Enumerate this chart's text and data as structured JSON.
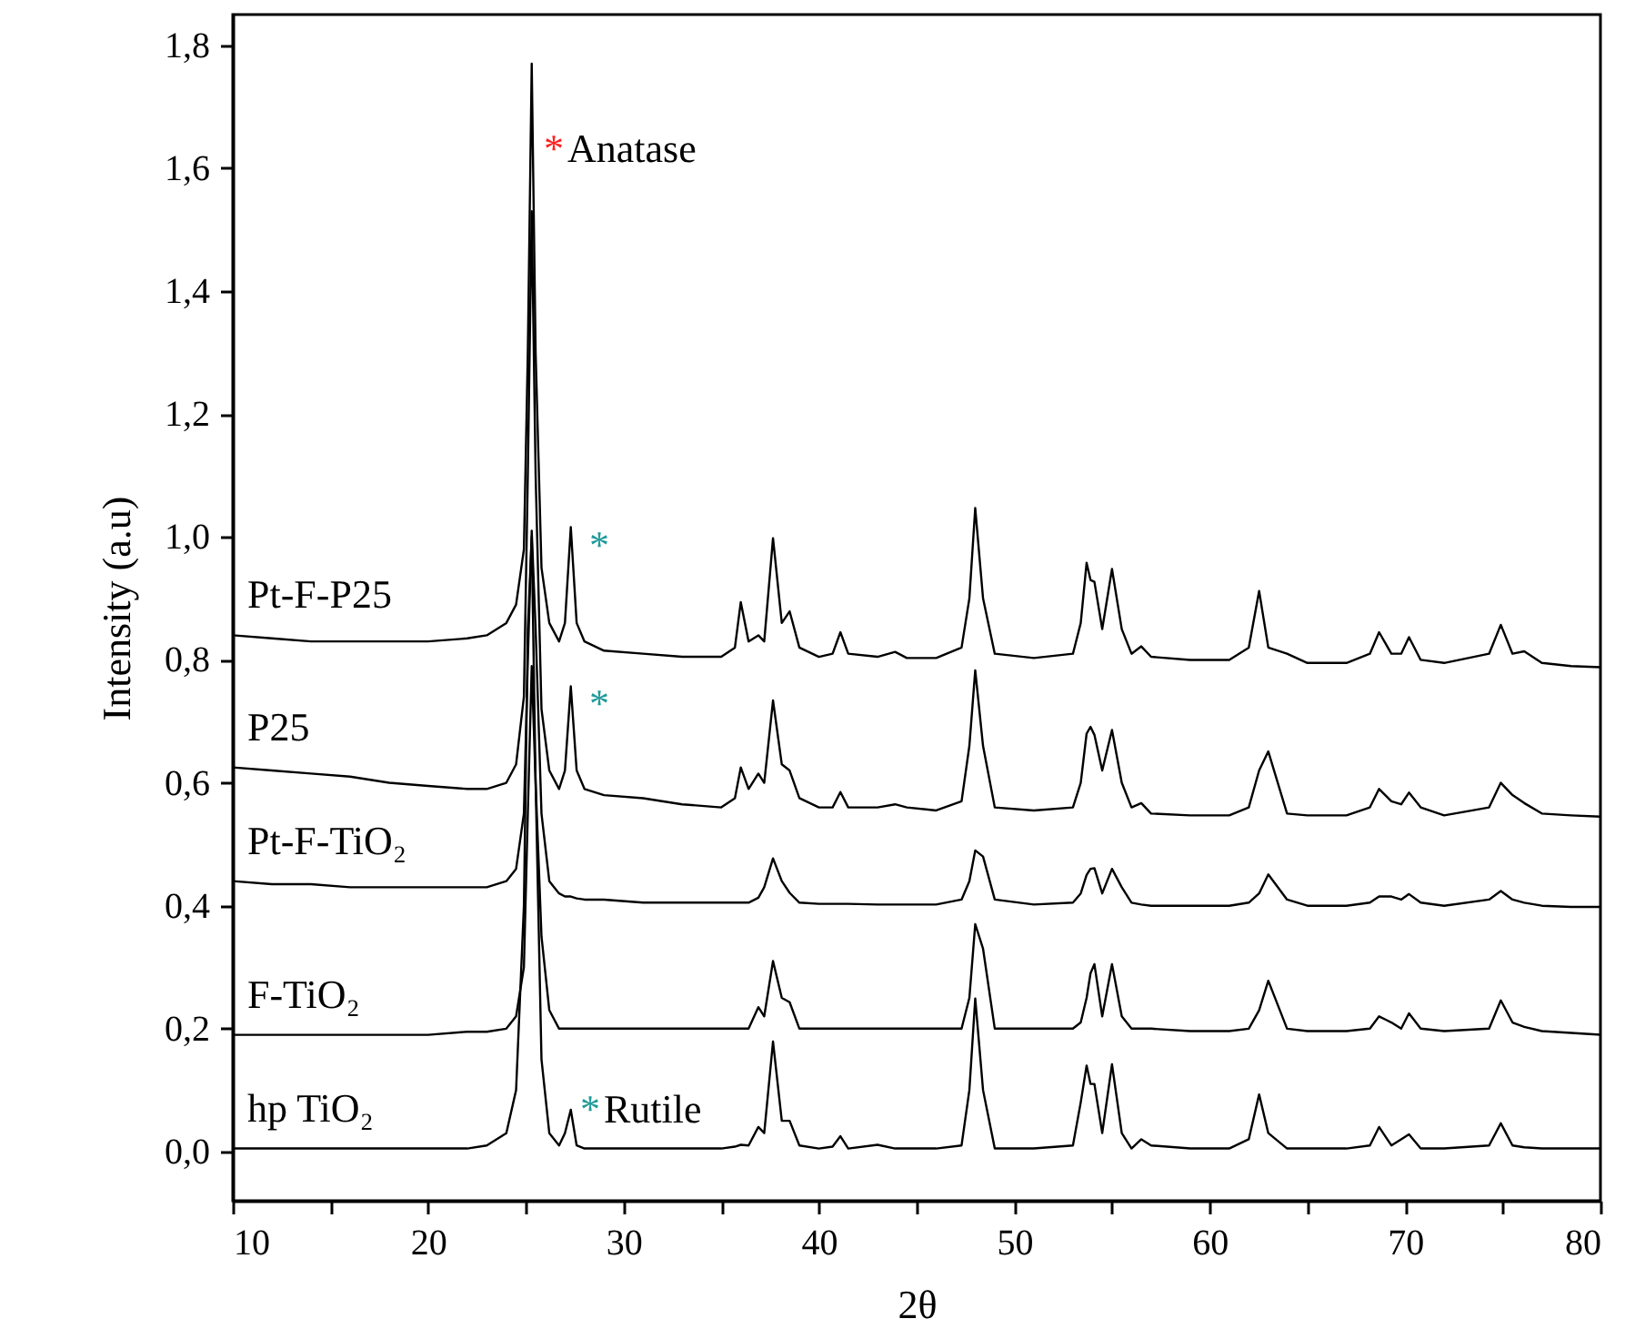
{
  "chart_data": {
    "type": "line",
    "xlabel": "2θ",
    "ylabel": "Intensity (a.u)",
    "xlim": [
      10,
      80
    ],
    "ylim": [
      -0.08,
      1.85
    ],
    "xticks": [
      10,
      {
        "value": 15,
        "label": null
      },
      20,
      {
        "value": 25,
        "label": null
      },
      30,
      {
        "value": 35,
        "label": null
      },
      40,
      {
        "value": 45,
        "label": null
      },
      50,
      {
        "value": 55,
        "label": null
      },
      60,
      {
        "value": 65,
        "label": null
      },
      70,
      {
        "value": 75,
        "label": null
      },
      80
    ],
    "yticks": [
      {
        "value": 0,
        "label": "0,0"
      },
      {
        "value": 0.2,
        "label": "0,2"
      },
      {
        "value": 0.4,
        "label": "0,4"
      },
      {
        "value": 0.6,
        "label": "0,6"
      },
      {
        "value": 0.8,
        "label": "0,8"
      },
      {
        "value": 1.0,
        "label": "1,0"
      },
      {
        "value": 1.2,
        "label": "1,2"
      },
      {
        "value": 1.4,
        "label": "1,4"
      },
      {
        "value": 1.6,
        "label": "1,6"
      },
      {
        "value": 1.8,
        "label": "1,8"
      }
    ],
    "grid": false,
    "marker": "none",
    "line_style": "solid",
    "x": [
      10,
      12,
      14,
      16,
      18,
      20,
      22,
      23,
      24,
      24.5,
      24.9,
      25.1,
      25.3,
      25.5,
      25.8,
      26.2,
      26.7,
      27.0,
      27.3,
      27.6,
      28,
      29,
      31,
      33,
      35,
      35.7,
      36.0,
      36.4,
      36.9,
      37.2,
      37.65,
      38.1,
      38.5,
      39,
      40,
      40.7,
      41.1,
      41.5,
      43,
      43.9,
      44.5,
      46,
      47.3,
      47.7,
      48.0,
      48.4,
      49,
      51,
      53,
      53.4,
      53.7,
      53.9,
      54.1,
      54.5,
      55.0,
      55.5,
      56,
      56.5,
      57,
      59,
      61,
      62,
      62.53,
      63,
      63.96,
      65,
      67,
      68.2,
      68.67,
      69.3,
      69.8,
      70.2,
      70.8,
      72,
      74.3,
      74.9,
      75.5,
      76.1,
      77,
      78.5,
      80
    ],
    "series": [
      {
        "name": "Pt-F-P25",
        "color": "#000000",
        "values": [
          0.84,
          0.835,
          0.83,
          0.83,
          0.83,
          0.83,
          0.835,
          0.84,
          0.86,
          0.89,
          0.98,
          1.3,
          1.77,
          1.3,
          0.95,
          0.86,
          0.83,
          0.86,
          1.016,
          0.86,
          0.83,
          0.815,
          0.81,
          0.805,
          0.805,
          0.82,
          0.894,
          0.83,
          0.84,
          0.83,
          0.998,
          0.86,
          0.879,
          0.82,
          0.805,
          0.81,
          0.845,
          0.81,
          0.805,
          0.813,
          0.803,
          0.803,
          0.82,
          0.9,
          1.047,
          0.9,
          0.81,
          0.803,
          0.81,
          0.86,
          0.958,
          0.93,
          0.927,
          0.85,
          0.948,
          0.85,
          0.81,
          0.822,
          0.805,
          0.8,
          0.8,
          0.82,
          0.912,
          0.82,
          0.81,
          0.795,
          0.795,
          0.81,
          0.845,
          0.81,
          0.81,
          0.837,
          0.8,
          0.795,
          0.81,
          0.857,
          0.81,
          0.814,
          0.795,
          0.79,
          0.788
        ]
      },
      {
        "name": "P25",
        "color": "#000000",
        "values": [
          0.625,
          0.62,
          0.615,
          0.61,
          0.6,
          0.595,
          0.59,
          0.59,
          0.6,
          0.63,
          0.74,
          1.1,
          1.53,
          1.1,
          0.72,
          0.62,
          0.59,
          0.62,
          0.757,
          0.62,
          0.59,
          0.58,
          0.575,
          0.565,
          0.56,
          0.575,
          0.625,
          0.59,
          0.615,
          0.6,
          0.734,
          0.63,
          0.62,
          0.575,
          0.56,
          0.56,
          0.585,
          0.56,
          0.56,
          0.565,
          0.56,
          0.555,
          0.57,
          0.66,
          0.783,
          0.66,
          0.56,
          0.555,
          0.56,
          0.6,
          0.68,
          0.691,
          0.678,
          0.62,
          0.686,
          0.6,
          0.56,
          0.567,
          0.55,
          0.547,
          0.547,
          0.56,
          0.62,
          0.651,
          0.55,
          0.547,
          0.547,
          0.56,
          0.59,
          0.57,
          0.565,
          0.584,
          0.56,
          0.547,
          0.56,
          0.6,
          0.58,
          0.567,
          0.55,
          0.547,
          0.545
        ]
      },
      {
        "name": "Pt-F-TiO₂",
        "color": "#000000",
        "values": [
          0.44,
          0.435,
          0.435,
          0.43,
          0.43,
          0.43,
          0.43,
          0.43,
          0.44,
          0.46,
          0.55,
          0.8,
          1.01,
          0.85,
          0.55,
          0.44,
          0.42,
          0.415,
          0.415,
          0.412,
          0.41,
          0.41,
          0.405,
          0.405,
          0.405,
          0.405,
          0.405,
          0.405,
          0.413,
          0.43,
          0.477,
          0.44,
          0.421,
          0.405,
          0.403,
          0.403,
          0.403,
          0.403,
          0.402,
          0.402,
          0.402,
          0.402,
          0.41,
          0.44,
          0.49,
          0.48,
          0.41,
          0.402,
          0.405,
          0.42,
          0.45,
          0.46,
          0.461,
          0.42,
          0.46,
          0.43,
          0.405,
          0.402,
          0.4,
          0.4,
          0.4,
          0.405,
          0.42,
          0.451,
          0.41,
          0.4,
          0.4,
          0.405,
          0.415,
          0.415,
          0.41,
          0.419,
          0.405,
          0.4,
          0.41,
          0.424,
          0.41,
          0.405,
          0.4,
          0.398,
          0.398
        ]
      },
      {
        "name": "F-TiO₂",
        "color": "#000000",
        "values": [
          0.19,
          0.19,
          0.19,
          0.19,
          0.19,
          0.19,
          0.195,
          0.195,
          0.2,
          0.22,
          0.3,
          0.55,
          0.79,
          0.6,
          0.35,
          0.23,
          0.2,
          0.2,
          0.2,
          0.2,
          0.2,
          0.2,
          0.2,
          0.2,
          0.2,
          0.2,
          0.2,
          0.2,
          0.235,
          0.22,
          0.31,
          0.25,
          0.243,
          0.2,
          0.2,
          0.2,
          0.2,
          0.2,
          0.2,
          0.2,
          0.2,
          0.2,
          0.2,
          0.25,
          0.37,
          0.33,
          0.2,
          0.2,
          0.2,
          0.21,
          0.25,
          0.29,
          0.305,
          0.22,
          0.305,
          0.22,
          0.2,
          0.2,
          0.2,
          0.196,
          0.196,
          0.2,
          0.23,
          0.278,
          0.2,
          0.196,
          0.196,
          0.2,
          0.22,
          0.21,
          0.2,
          0.225,
          0.2,
          0.196,
          0.2,
          0.246,
          0.21,
          0.203,
          0.196,
          0.193,
          0.19
        ]
      },
      {
        "name": "hp TiO₂",
        "color": "#000000",
        "values": [
          0.005,
          0.005,
          0.005,
          0.005,
          0.005,
          0.005,
          0.005,
          0.01,
          0.03,
          0.1,
          0.4,
          0.85,
          1.0,
          0.6,
          0.15,
          0.03,
          0.01,
          0.03,
          0.068,
          0.01,
          0.005,
          0.005,
          0.005,
          0.005,
          0.005,
          0.008,
          0.011,
          0.01,
          0.04,
          0.03,
          0.179,
          0.05,
          0.05,
          0.01,
          0.005,
          0.008,
          0.025,
          0.005,
          0.011,
          0.005,
          0.005,
          0.005,
          0.01,
          0.1,
          0.249,
          0.1,
          0.005,
          0.005,
          0.01,
          0.08,
          0.14,
          0.11,
          0.11,
          0.03,
          0.142,
          0.03,
          0.005,
          0.02,
          0.01,
          0.005,
          0.005,
          0.02,
          0.093,
          0.03,
          0.005,
          0.005,
          0.005,
          0.01,
          0.04,
          0.01,
          0.02,
          0.028,
          0.005,
          0.005,
          0.01,
          0.046,
          0.01,
          0.007,
          0.005,
          0.005,
          0.005
        ]
      }
    ],
    "annotations": [
      "*",
      "Anatase",
      "*",
      "*",
      "*",
      "Rutile"
    ]
  }
}
